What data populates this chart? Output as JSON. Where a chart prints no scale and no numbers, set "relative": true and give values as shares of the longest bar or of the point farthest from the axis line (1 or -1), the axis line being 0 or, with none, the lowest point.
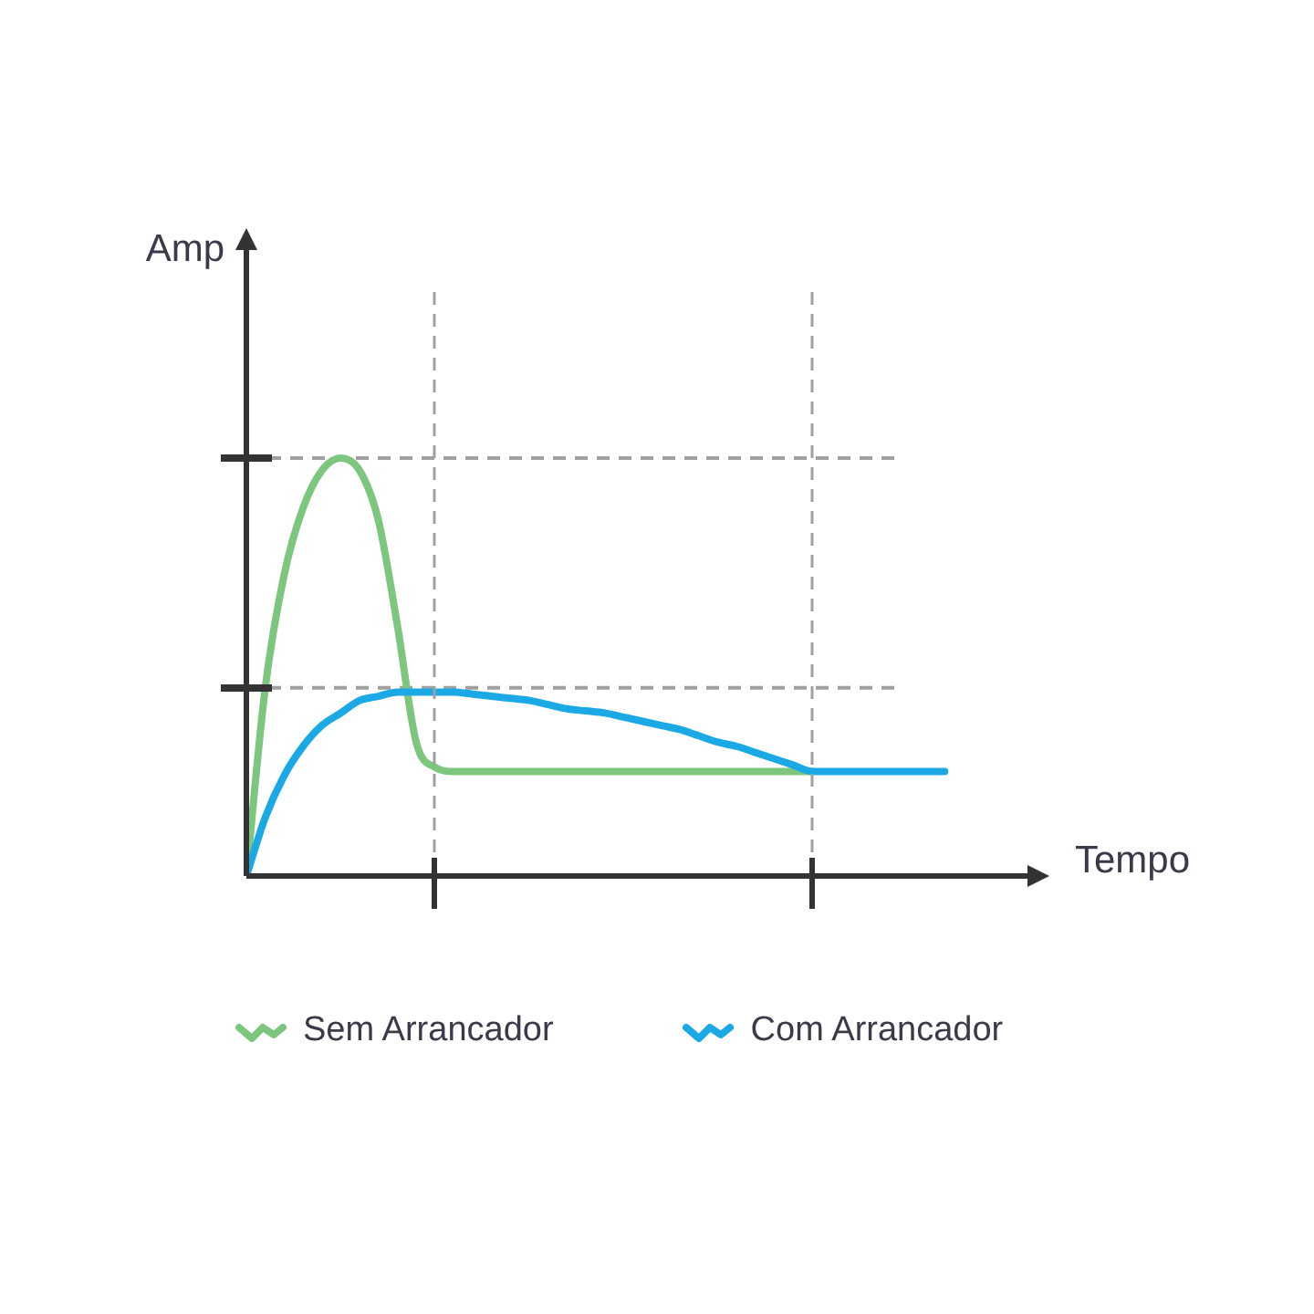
{
  "chart_data": {
    "type": "line",
    "relative": true,
    "xlabel": "Tempo",
    "ylabel": "Amp",
    "legend": "bottom",
    "marker": "none",
    "line_style": "solid",
    "categories": [
      null,
      null,
      null,
      null,
      null,
      null,
      null,
      null,
      null,
      null,
      null,
      null,
      null,
      null,
      null,
      null,
      null,
      null,
      null,
      null,
      null,
      null,
      null,
      null,
      null,
      null,
      null,
      null,
      null,
      null,
      null,
      null,
      null,
      null,
      null,
      null,
      null,
      null
    ],
    "series": [
      {
        "name": "Sem Arrancador",
        "color": "#7dc67e",
        "values": [
          0,
          0.45,
          0.72,
          0.88,
          0.97,
          1,
          0.97,
          0.85,
          0.6,
          0.32,
          0.26,
          0.25,
          0.25,
          0.25,
          0.25,
          0.25,
          0.25,
          0.25,
          0.25,
          0.25,
          0.25,
          0.25,
          0.25,
          0.25,
          0.25,
          0.25,
          0.25,
          0.25,
          0.25,
          0.25,
          0.25,
          null,
          null,
          null,
          null,
          null,
          null,
          null
        ]
      },
      {
        "name": "Com Arrancador",
        "color": "#1ba9e6",
        "values": [
          0,
          0.14,
          0.24,
          0.31,
          0.36,
          0.39,
          0.42,
          0.43,
          0.44,
          0.44,
          0.44,
          0.44,
          0.435,
          0.43,
          0.425,
          0.42,
          0.41,
          0.4,
          0.395,
          0.39,
          0.38,
          0.37,
          0.36,
          0.35,
          0.335,
          0.32,
          0.31,
          0.295,
          0.28,
          0.265,
          0.25,
          0.25,
          0.25,
          0.25,
          0.25,
          0.25,
          0.25,
          0.25
        ]
      }
    ],
    "ref_lines": [
      {
        "axis": "y",
        "value": 1,
        "color": "#a0a0a0",
        "line_style": "dashed"
      },
      {
        "axis": "y",
        "value": 0.45,
        "color": "#a0a0a0",
        "line_style": "dashed"
      }
    ]
  }
}
